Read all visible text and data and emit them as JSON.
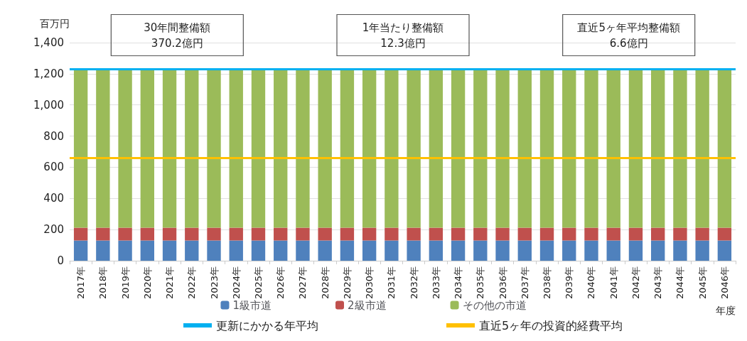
{
  "chart_data": {
    "type": "bar",
    "stacked": true,
    "ylabel": "百万円",
    "xlabel": "年度",
    "categories": [
      "2017年",
      "2018年",
      "2019年",
      "2020年",
      "2021年",
      "2022年",
      "2023年",
      "2024年",
      "2025年",
      "2026年",
      "2027年",
      "2028年",
      "2029年",
      "2030年",
      "2031年",
      "2032年",
      "2033年",
      "2034年",
      "2035年",
      "2036年",
      "2037年",
      "2038年",
      "2039年",
      "2040年",
      "2041年",
      "2042年",
      "2043年",
      "2044年",
      "2045年",
      "2046年"
    ],
    "series": [
      {
        "name": "1級市道",
        "color": "#4f81bd",
        "values": [
          130,
          130,
          130,
          130,
          130,
          130,
          130,
          130,
          130,
          130,
          130,
          130,
          130,
          130,
          130,
          130,
          130,
          130,
          130,
          130,
          130,
          130,
          130,
          130,
          130,
          130,
          130,
          130,
          130,
          130
        ]
      },
      {
        "name": "2級市道",
        "color": "#c0504d",
        "values": [
          82,
          82,
          82,
          82,
          82,
          82,
          82,
          82,
          82,
          82,
          82,
          82,
          82,
          82,
          82,
          82,
          82,
          82,
          82,
          82,
          82,
          82,
          82,
          82,
          82,
          82,
          82,
          82,
          82,
          82
        ]
      },
      {
        "name": "その他の市道",
        "color": "#9bbb59",
        "values": [
          1018,
          1018,
          1018,
          1018,
          1018,
          1018,
          1018,
          1018,
          1018,
          1018,
          1018,
          1018,
          1018,
          1018,
          1018,
          1018,
          1018,
          1018,
          1018,
          1018,
          1018,
          1018,
          1018,
          1018,
          1018,
          1018,
          1018,
          1018,
          1018,
          1018
        ]
      }
    ],
    "ref_lines": [
      {
        "axis": "y",
        "value": 1230,
        "label": "更新にかかる年平均",
        "color": "#00b0f0"
      },
      {
        "axis": "y",
        "value": 660,
        "label": "直近5ヶ年の投資的経費平均",
        "color": "#ffc000"
      }
    ],
    "annotations": [
      "30年間整備額\n370.2億円",
      "1年当たり整備額\n12.3億円",
      "直近5ヶ年平均整備額\n6.6億円"
    ],
    "ylim": [
      0,
      1400
    ],
    "yticks": [
      0,
      200,
      400,
      600,
      800,
      {
        "value": 1000,
        "label": "1,000"
      },
      {
        "value": 1200,
        "label": "1,200"
      },
      {
        "value": 1400,
        "label": "1,400"
      }
    ],
    "grid": "y",
    "legend": "bottom"
  }
}
